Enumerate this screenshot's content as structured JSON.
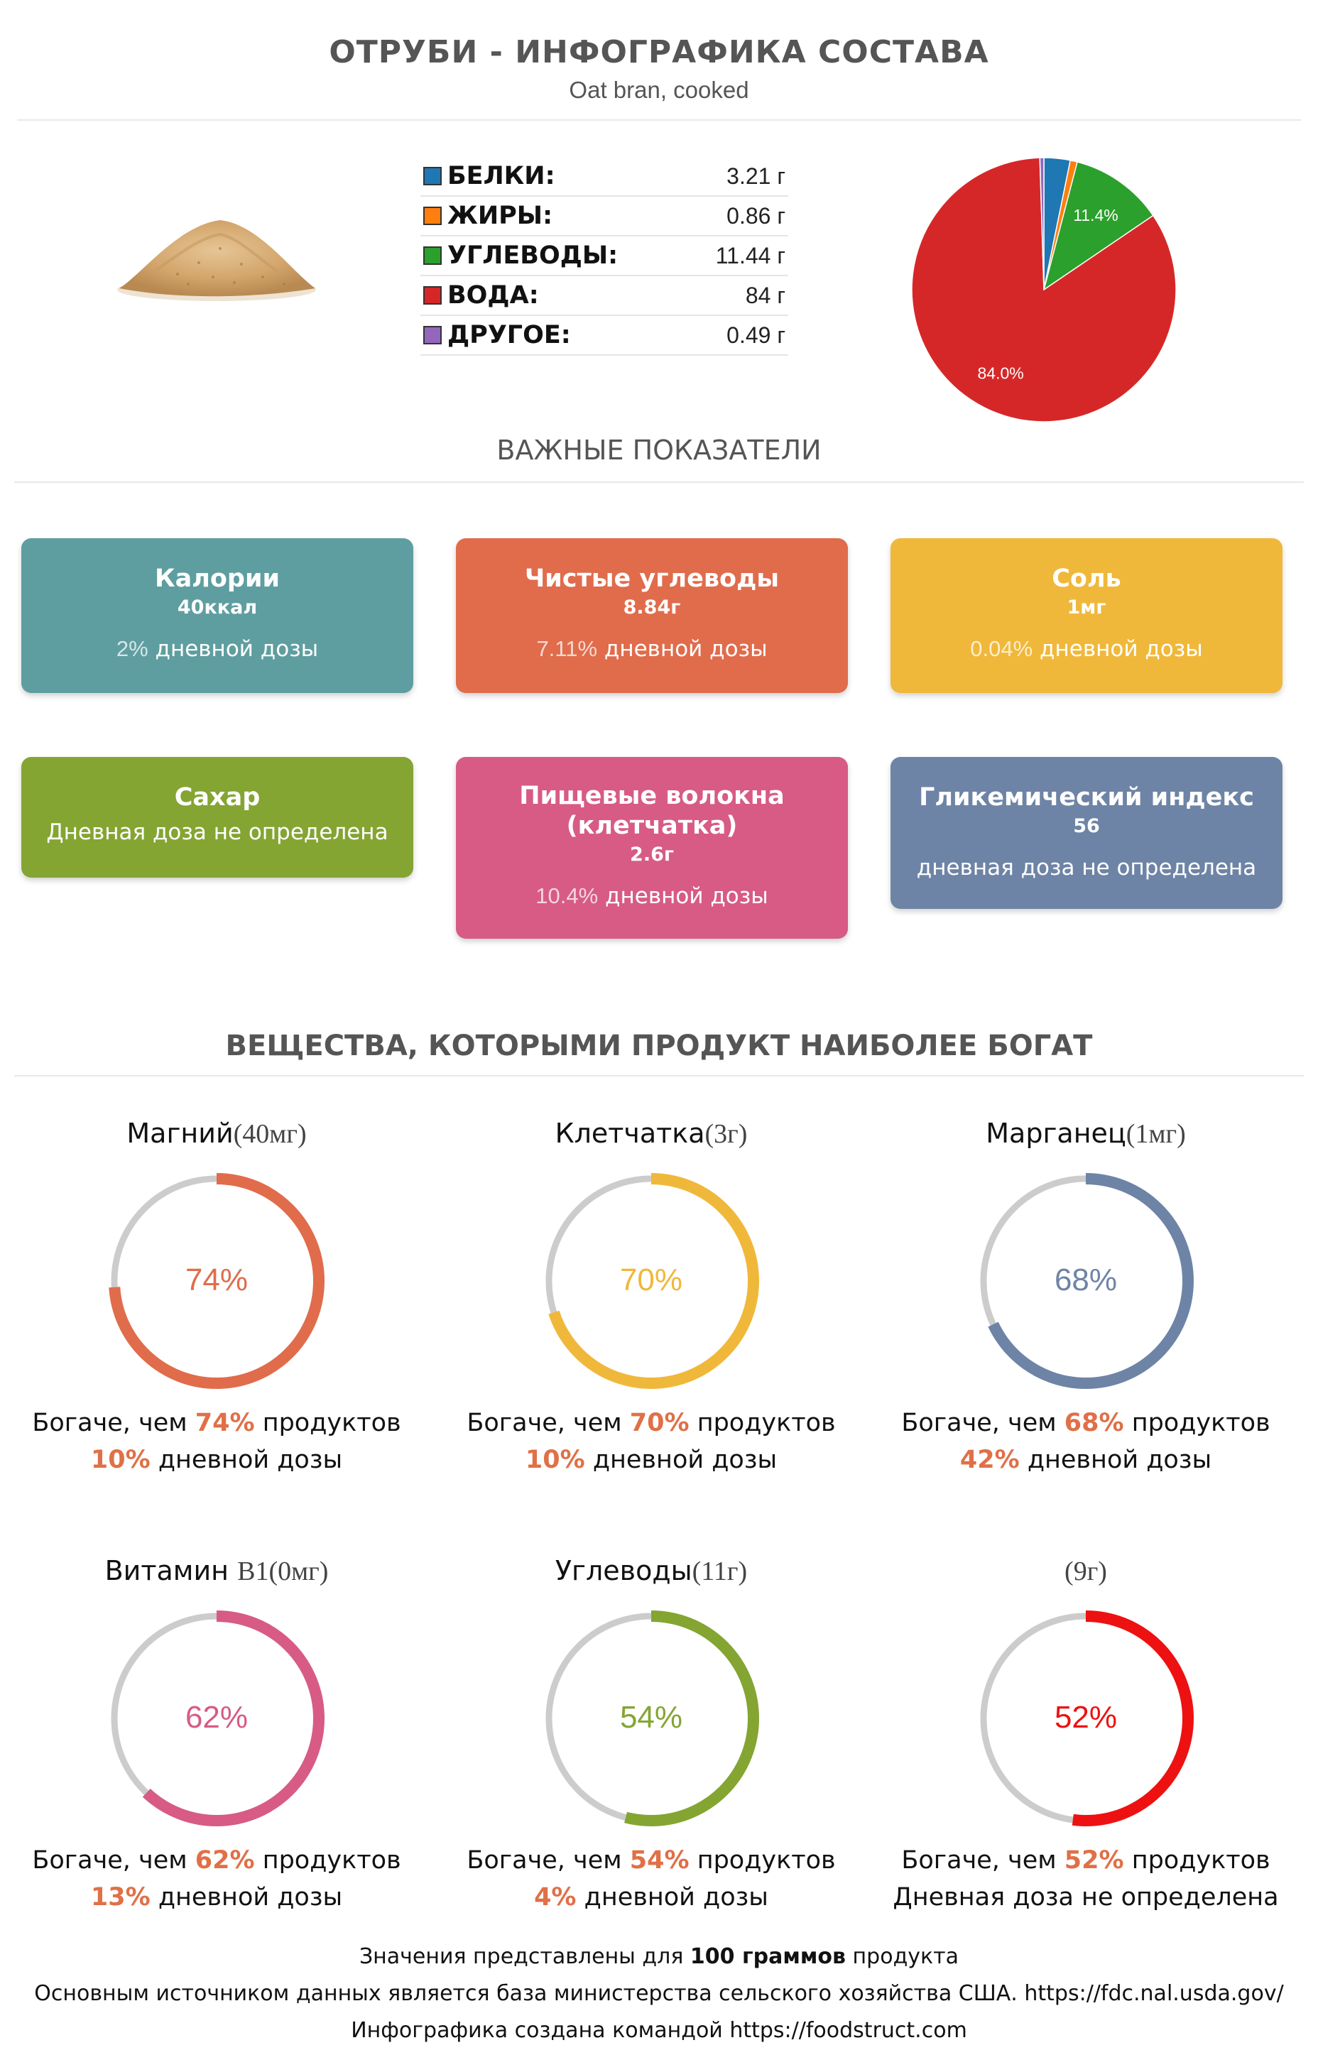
{
  "header": {
    "title": "ОТРУБИ - ИНФОГРАФИКА СОСТАВА",
    "subtitle": "Oat bran, cooked"
  },
  "macros": [
    {
      "name": "БЕЛКИ",
      "value": "3.21 г",
      "color": "#1f77b4"
    },
    {
      "name": "ЖИРЫ",
      "value": "0.86 г",
      "color": "#ff7f0e"
    },
    {
      "name": "УГЛЕВОДЫ",
      "value": "11.44 г",
      "color": "#2ca02c"
    },
    {
      "name": "ВОДА",
      "value": "84 г",
      "color": "#d62728"
    },
    {
      "name": "ДРУГОЕ",
      "value": "0.49 г",
      "color": "#9467bd"
    }
  ],
  "chart_data": {
    "type": "pie",
    "categories": [
      "БЕЛКИ",
      "ЖИРЫ",
      "УГЛЕВОДЫ",
      "ВОДА",
      "ДРУГОЕ"
    ],
    "values": [
      3.21,
      0.86,
      11.44,
      84,
      0.49
    ],
    "colors": [
      "#1f77b4",
      "#ff7f0e",
      "#2ca02c",
      "#d62728",
      "#9467bd"
    ],
    "slice_labels": [
      "",
      "",
      "11.4%",
      "84.0%",
      ""
    ]
  },
  "important": {
    "title": "ВАЖНЫЕ ПОКАЗАТЕЛИ",
    "cards": [
      {
        "title": "Калории",
        "value": "40ккал",
        "pct": "2%",
        "daily": " дневной дозы",
        "color": "#5f9ea0"
      },
      {
        "title": "Чистые углеводы",
        "value": "8.84г",
        "pct": "7.11%",
        "daily": " дневной дозы",
        "color": "#e06c4c"
      },
      {
        "title": "Соль",
        "value": "1мг",
        "pct": "0.04%",
        "daily": " дневной дозы",
        "color": "#f0b83a"
      },
      {
        "title": "Сахар",
        "value": "",
        "pct": "",
        "daily": "Дневная доза не определена",
        "color": "#84a532"
      },
      {
        "title": "Пищевые волокна (клетчатка)",
        "value": "2.6г",
        "pct": "10.4%",
        "daily": " дневной дозы",
        "color": "#d75b85"
      },
      {
        "title": "Гликемический индекс",
        "value": "56",
        "pct": "",
        "daily": "дневная доза не определена",
        "color": "#6e84a6"
      }
    ]
  },
  "rich": {
    "title": "ВЕЩЕСТВА, КОТОРЫМИ ПРОДУКТ НАИБОЛЕЕ БОГАТ",
    "richer_prefix": "Богаче, чем ",
    "richer_suffix": " продуктов",
    "daily_suffix": " дневной дозы",
    "items": [
      {
        "name": "Магний",
        "amount": "(40мг)",
        "percent": 74,
        "pct_text": "74%",
        "daily_pct": "10%",
        "daily_text": "",
        "color": "#e06c4c"
      },
      {
        "name": "Клетчатка",
        "amount": "(3г)",
        "percent": 70,
        "pct_text": "70%",
        "daily_pct": "10%",
        "daily_text": "",
        "color": "#f0b83a"
      },
      {
        "name": "Марганец",
        "amount": "(1мг)",
        "percent": 68,
        "pct_text": "68%",
        "daily_pct": "42%",
        "daily_text": "",
        "color": "#6e84a6"
      },
      {
        "name": "Витамин ",
        "amount": "B1(0мг)",
        "percent": 62,
        "pct_text": "62%",
        "daily_pct": "13%",
        "daily_text": "",
        "color": "#d75b85"
      },
      {
        "name": "Углеводы",
        "amount": "(11г)",
        "percent": 54,
        "pct_text": "54%",
        "daily_pct": "4%",
        "daily_text": "",
        "color": "#84a532"
      },
      {
        "name": "",
        "amount": "(9г)",
        "percent": 52,
        "pct_text": "52%",
        "daily_pct": "",
        "daily_text": "Дневная доза не определена",
        "color": "#ee1111"
      }
    ]
  },
  "footer": {
    "line1_pre": "Значения представлены для ",
    "line1_bold": "100 граммов",
    "line1_post": " продукта",
    "line2": "Основным источником данных является база министерства сельского хозяйства США. https://fdc.nal.usda.gov/",
    "line3": "Инфографика создана командой https://foodstruct.com"
  }
}
